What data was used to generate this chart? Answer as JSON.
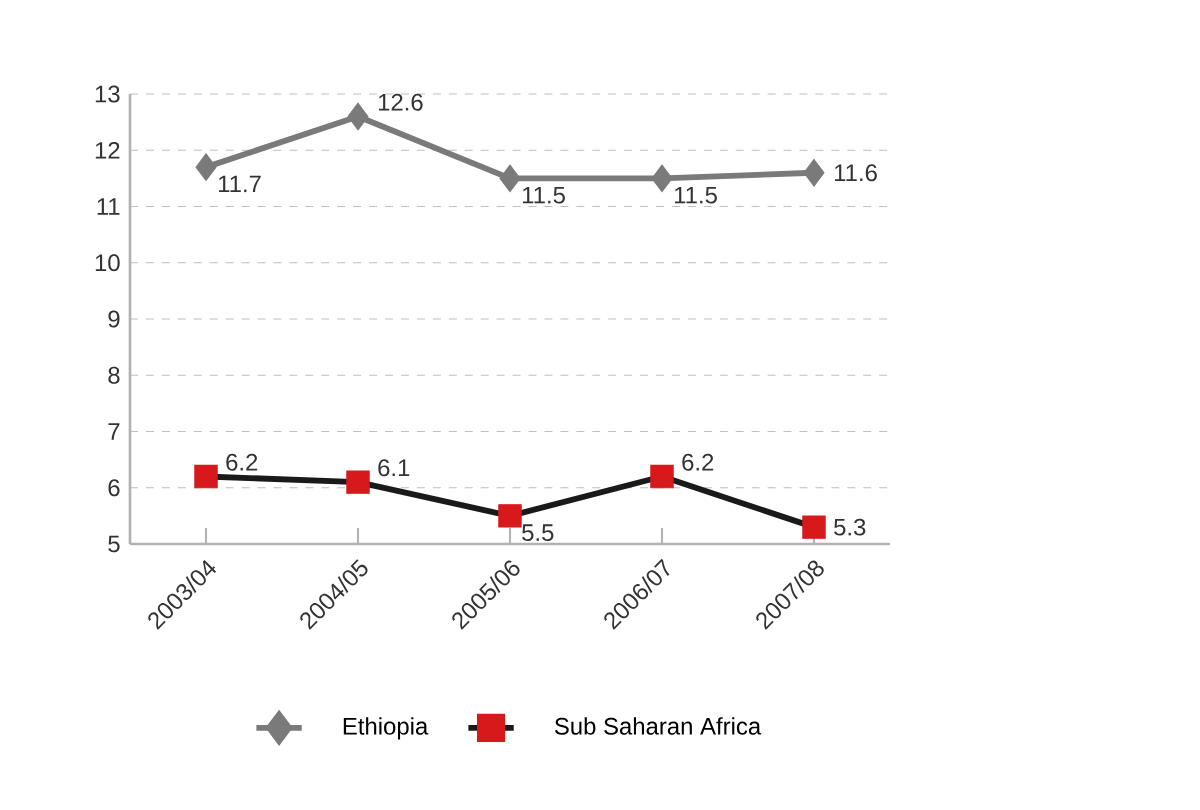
{
  "chart_data": {
    "type": "line",
    "categories": [
      "2003/04",
      "2004/05",
      "2005/06",
      "2006/07",
      "2007/08"
    ],
    "series": [
      {
        "name": "Ethiopia",
        "color": "#7a7a7a",
        "marker": "diamond",
        "values": [
          11.7,
          12.6,
          11.5,
          11.5,
          11.6
        ]
      },
      {
        "name": "Sub Saharan Africa",
        "color": "#1a1a1a",
        "colors": [
          "#d7191c",
          "#d7191c",
          "#d7191c",
          "#d7191c",
          "#d7191c"
        ],
        "marker": "square",
        "values": [
          6.2,
          6.1,
          5.5,
          6.2,
          5.3
        ]
      }
    ],
    "ylim": [
      5,
      13
    ],
    "yticks": [
      5,
      6,
      7,
      8,
      9,
      10,
      11,
      12,
      13
    ],
    "grid": "y",
    "legend": "bottom",
    "data_labels": true,
    "line_style": "solid"
  }
}
